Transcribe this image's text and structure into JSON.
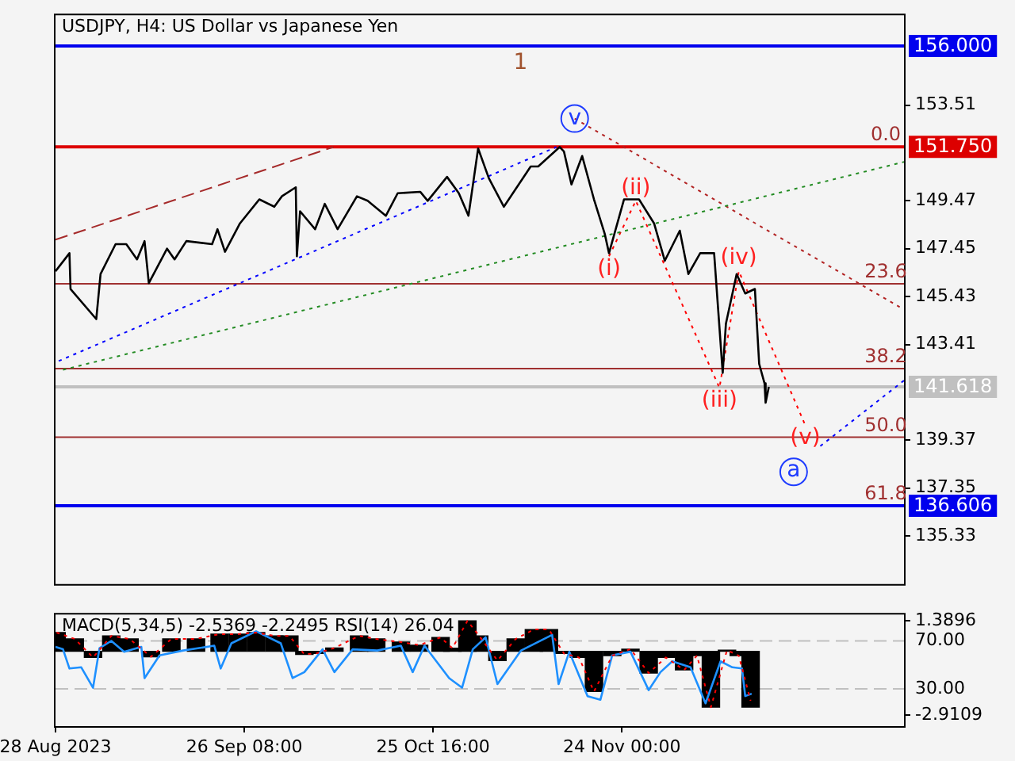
{
  "chart_data": [
    {
      "type": "line",
      "title": "USDJPY, H4: US Dollar vs Japanese Yen",
      "tick_labels": "y",
      "xlim": [
        "2023-08-28T00:00",
        "2024-01-06T20:00"
      ],
      "ylim": [
        133.3,
        157.3
      ],
      "yticks": [
        153.51,
        149.47,
        147.45,
        145.43,
        143.41,
        139.37,
        137.35,
        135.33
      ],
      "series": [
        {
          "color": "#000000",
          "x": [
            "2023-08-28T00:00",
            "2023-08-30T04:00",
            "2023-08-30T08:00",
            "2023-09-03T08:00",
            "2023-09-04T00:00",
            "2023-09-06T08:00",
            "2023-09-08T00:00",
            "2023-09-09T16:00",
            "2023-09-10T20:00",
            "2023-09-11T12:00",
            "2023-09-14T08:00",
            "2023-09-15T12:00",
            "2023-09-17T08:00",
            "2023-09-21T08:00",
            "2023-09-22T04:00",
            "2023-09-23T08:00",
            "2023-09-25T16:00",
            "2023-09-28T16:00",
            "2023-10-01T00:00",
            "2023-10-02T04:00",
            "2023-10-04T08:00",
            "2023-10-04T12:00",
            "2023-10-05T00:00",
            "2023-10-07T08:00",
            "2023-10-08T20:00",
            "2023-10-10T20:00",
            "2023-10-13T20:00",
            "2023-10-15T12:00",
            "2023-10-18T08:00",
            "2023-10-20T04:00",
            "2023-10-23T16:00",
            "2023-10-24T20:00",
            "2023-10-27T20:00",
            "2023-10-29T16:00",
            "2023-10-31T04:00",
            "2023-11-01T16:00",
            "2023-11-03T08:00",
            "2023-11-05T16:00",
            "2023-11-09T20:00",
            "2023-11-11T00:00",
            "2023-11-14T08:00",
            "2023-11-15T00:00",
            "2023-11-16T04:00",
            "2023-11-17T20:00",
            "2023-11-19T16:00",
            "2023-11-21T08:00",
            "2023-11-22T00:00",
            "2023-11-24T08:00",
            "2023-11-26T16:00",
            "2023-11-29T00:00",
            "2023-11-30T16:00",
            "2023-12-03T00:00",
            "2023-12-04T08:00",
            "2023-12-06T04:00",
            "2023-12-08T08:00",
            "2023-12-09T16:00",
            "2023-12-10T04:00",
            "2023-12-11T20:00",
            "2023-12-13T04:00",
            "2023-12-14T16:00",
            "2023-12-15T08:00",
            "2023-12-16T04:00",
            "2023-12-16T08:00",
            "2023-12-16T20:00"
          ],
          "values": [
            146.5,
            147.26,
            145.75,
            144.48,
            146.38,
            147.64,
            147.64,
            147.0,
            147.77,
            146.0,
            147.45,
            147.0,
            147.77,
            147.64,
            148.27,
            147.32,
            148.52,
            149.53,
            149.22,
            149.66,
            150.04,
            147.13,
            149.03,
            148.27,
            149.34,
            148.27,
            149.66,
            149.47,
            148.84,
            149.79,
            149.85,
            149.47,
            150.48,
            149.79,
            148.84,
            151.68,
            150.42,
            149.22,
            150.92,
            150.92,
            151.74,
            151.55,
            150.16,
            151.36,
            149.53,
            148.08,
            147.26,
            149.53,
            149.53,
            148.52,
            146.94,
            148.21,
            146.38,
            147.26,
            147.26,
            142.21,
            144.29,
            146.38,
            145.56,
            145.75,
            142.59,
            141.77,
            140.95,
            141.62
          ]
        },
        {
          "color": "#a52a2a",
          "line_style": "dashed",
          "x": [
            "2023-08-28T00:00",
            "2023-10-10T04:00"
          ],
          "values": [
            147.83,
            151.74
          ]
        },
        {
          "color": "#0000ff",
          "line_style": "dotted",
          "x": [
            "2023-08-28T12:00",
            "2023-11-13T20:00"
          ],
          "values": [
            142.71,
            151.74
          ]
        },
        {
          "color": "#228b22",
          "line_style": "dotted",
          "x": [
            "2023-08-29T04:00",
            "2024-01-06T20:00"
          ],
          "values": [
            142.34,
            151.11
          ]
        },
        {
          "color": "#b22222",
          "line_style": "dotted",
          "x": [
            "2023-11-16T16:00",
            "2024-01-06T04:00"
          ],
          "values": [
            152.94,
            144.99
          ]
        },
        {
          "color": "#ff0000",
          "line_style": "dotted",
          "x": [
            "2023-11-22T00:00",
            "2023-11-26T04:00",
            "2023-12-09T04:00",
            "2023-12-12T04:00",
            "2023-12-22T12:00"
          ],
          "values": [
            147.13,
            149.47,
            141.58,
            146.5,
            140.0
          ]
        },
        {
          "color": "#0000ff",
          "line_style": "dotted",
          "x": [
            "2023-12-24T20:00",
            "2024-01-06T20:00"
          ],
          "values": [
            139.12,
            141.89
          ]
        }
      ],
      "ref_lines": [
        {
          "axis": "y",
          "value": 156.0,
          "label": "156.000",
          "color": "#0000ee"
        },
        {
          "axis": "y",
          "value": 151.75,
          "label": "151.750",
          "color": "#dd0000"
        },
        {
          "axis": "y",
          "value": 145.97,
          "label": null,
          "color": "#a03030"
        },
        {
          "axis": "y",
          "value": 142.39,
          "label": null,
          "color": "#a03030"
        },
        {
          "axis": "y",
          "value": 141.618,
          "label": "141.618",
          "color": "#c0c0c0"
        },
        {
          "axis": "y",
          "value": 139.5,
          "label": null,
          "color": "#a03030"
        },
        {
          "axis": "y",
          "value": 136.606,
          "label": "136.606",
          "color": "#0000ee"
        }
      ],
      "annotations": [
        "1",
        {
          "text": "v",
          "x": "2023-11-16T16:00",
          "y": 152.94
        },
        {
          "text": "(i)",
          "x": "2023-11-22T00:00",
          "y": 147.13
        },
        {
          "text": "(ii)",
          "x": "2023-11-26T04:00",
          "y": 149.47
        },
        {
          "text": "(iii)",
          "x": "2023-12-09T04:00",
          "y": 141.58
        },
        {
          "text": "(iv)",
          "x": "2023-12-12T04:00",
          "y": 146.5
        },
        {
          "text": "(v)",
          "x": "2023-12-22T12:00",
          "y": 140.0
        },
        "a",
        {
          "text": "0.0",
          "x": "2024-01-04T00:00",
          "y": 151.75
        },
        {
          "text": "23.6",
          "x": "2024-01-04T00:00",
          "y": 145.97
        },
        {
          "text": "38.2",
          "x": "2024-01-04T00:00",
          "y": 142.39
        },
        {
          "text": "50.0",
          "x": "2024-01-04T00:00",
          "y": 139.5
        },
        {
          "text": "61.8",
          "x": "2024-01-04T00:00",
          "y": 136.606
        }
      ]
    },
    {
      "type": "bar",
      "title": "MACD(5,34,5) -2.5369 -2.2495 RSI(14) 26.04",
      "xlim": [
        "2023-08-28T00:00",
        "2024-01-06T20:00"
      ],
      "xticks": [
        {
          "value": "2023-08-28T00:00",
          "label": "28 Aug 2023"
        },
        {
          "value": "2023-09-26T08:00",
          "label": "26 Sep 08:00"
        },
        {
          "value": "2023-10-25T16:00",
          "label": "25 Oct 16:00"
        },
        {
          "value": "2023-11-24T00:00",
          "label": "24 Nov 00:00"
        }
      ],
      "ylim": [
        -3.4,
        1.67
      ],
      "yticks": [
        1.3896,
        -2.9109
      ],
      "y2lim": [
        -1,
        92
      ],
      "y2ticks": [
        {
          "value": 70,
          "label": "70.00"
        },
        {
          "value": 30,
          "label": "30.00"
        }
      ],
      "series": [
        {
          "type": "bar",
          "color": "#000000",
          "x": [
            "2023-08-28T04:00",
            "2023-08-31T00:00",
            "2023-09-02T20:00",
            "2023-09-05T16:00",
            "2023-09-08T12:00",
            "2023-09-11T20:00",
            "2023-09-15T00:00",
            "2023-09-18T20:00",
            "2023-09-22T12:00",
            "2023-09-25T08:00",
            "2023-09-28T04:00",
            "2023-10-01T00:00",
            "2023-10-03T08:00",
            "2023-10-05T16:00",
            "2023-10-07T12:00",
            "2023-10-10T08:00",
            "2023-10-14T04:00",
            "2023-10-16T20:00",
            "2023-10-20T16:00",
            "2023-10-23T12:00",
            "2023-10-26T20:00",
            "2023-10-28T16:00",
            "2023-10-31T00:00",
            "2023-11-01T20:00",
            "2023-11-04T16:00",
            "2023-11-07T12:00",
            "2023-11-10T08:00",
            "2023-11-12T16:00",
            "2023-11-15T00:00",
            "2023-11-17T08:00",
            "2023-11-19T16:00",
            "2023-11-22T12:00",
            "2023-11-25T08:00",
            "2023-11-28T04:00",
            "2023-11-30T20:00",
            "2023-12-03T16:00",
            "2023-12-05T16:00",
            "2023-12-07T20:00",
            "2023-12-10T08:00",
            "2023-12-12T04:00",
            "2023-12-14T00:00"
          ],
          "values": [
            0.85,
            0.56,
            -0.28,
            0.7,
            0.56,
            -0.25,
            0.56,
            0.56,
            0.78,
            0.78,
            0.85,
            0.7,
            0.7,
            -0.14,
            -0.1,
            0.15,
            0.7,
            0.56,
            0.42,
            0.28,
            0.63,
            0.14,
            1.38,
            0.7,
            -0.42,
            0.56,
            0.99,
            0.99,
            -0.1,
            -0.28,
            -1.83,
            -0.2,
            0.1,
            -0.99,
            -0.28,
            -0.85,
            -0.2,
            -2.54,
            0.05,
            -0.2,
            -2.54
          ]
        },
        {
          "type": "line",
          "color": "#ff0000",
          "line_style": "dotted",
          "x": [
            "2023-08-28T04:00",
            "2023-08-31T00:00",
            "2023-09-02T20:00",
            "2023-09-05T16:00",
            "2023-09-08T12:00",
            "2023-09-11T20:00",
            "2023-09-15T00:00",
            "2023-09-18T20:00",
            "2023-09-22T12:00",
            "2023-09-25T08:00",
            "2023-09-28T04:00",
            "2023-10-01T00:00",
            "2023-10-03T08:00",
            "2023-10-05T16:00",
            "2023-10-07T12:00",
            "2023-10-10T08:00",
            "2023-10-14T04:00",
            "2023-10-16T20:00",
            "2023-10-20T16:00",
            "2023-10-23T12:00",
            "2023-10-26T20:00",
            "2023-10-28T16:00",
            "2023-10-31T00:00",
            "2023-11-01T20:00",
            "2023-11-04T16:00",
            "2023-11-07T12:00",
            "2023-11-10T08:00",
            "2023-11-12T16:00",
            "2023-11-15T00:00",
            "2023-11-17T08:00",
            "2023-11-19T16:00",
            "2023-11-22T12:00",
            "2023-11-25T08:00",
            "2023-11-28T04:00",
            "2023-11-30T20:00",
            "2023-12-03T16:00",
            "2023-12-05T16:00",
            "2023-12-07T20:00",
            "2023-12-10T08:00",
            "2023-12-12T04:00",
            "2023-12-14T00:00"
          ],
          "values": [
            0.85,
            0.56,
            -0.28,
            0.7,
            0.56,
            -0.25,
            0.56,
            0.56,
            0.78,
            0.78,
            0.85,
            0.7,
            0.7,
            -0.14,
            -0.1,
            0.15,
            0.7,
            0.56,
            0.42,
            0.28,
            0.63,
            0.14,
            1.38,
            0.7,
            -0.42,
            0.56,
            0.99,
            0.99,
            -0.1,
            -0.28,
            -1.83,
            -0.2,
            0.1,
            -0.99,
            -0.28,
            -0.85,
            -0.2,
            -2.54,
            0.05,
            -0.2,
            -2.25
          ]
        },
        {
          "type": "line",
          "axis": "y2",
          "color": "#1e90ff",
          "x": [
            "2023-08-28T00:00",
            "2023-08-29T04:00",
            "2023-08-30T04:00",
            "2023-09-01T00:00",
            "2023-09-02T20:00",
            "2023-09-03T20:00",
            "2023-09-05T16:00",
            "2023-09-07T16:00",
            "2023-09-10T08:00",
            "2023-09-10T20:00",
            "2023-09-13T04:00",
            "2023-09-16T20:00",
            "2023-09-21T16:00",
            "2023-09-22T16:00",
            "2023-09-24T08:00",
            "2023-09-28T04:00",
            "2023-10-02T00:00",
            "2023-10-03T20:00",
            "2023-10-05T16:00",
            "2023-10-08T12:00",
            "2023-10-10T08:00",
            "2023-10-13T04:00",
            "2023-10-17T00:00",
            "2023-10-20T16:00",
            "2023-10-22T12:00",
            "2023-10-24T08:00",
            "2023-10-28T04:00",
            "2023-10-30T04:00",
            "2023-10-31T20:00",
            "2023-11-02T20:00",
            "2023-11-04T16:00",
            "2023-11-08T08:00",
            "2023-11-13T04:00",
            "2023-11-14T04:00",
            "2023-11-15T20:00",
            "2023-11-18T16:00",
            "2023-11-20T16:00",
            "2023-11-22T12:00",
            "2023-11-25T08:00",
            "2023-11-28T04:00",
            "2023-11-30T00:00",
            "2023-12-01T20:00",
            "2023-12-04T16:00",
            "2023-12-07T00:00",
            "2023-12-09T08:00",
            "2023-12-11T04:00",
            "2023-12-12T16:00",
            "2023-12-13T04:00",
            "2023-12-14T04:00"
          ],
          "values": [
            65,
            63,
            47,
            48,
            31,
            64,
            70,
            61,
            65,
            39,
            58,
            62,
            66,
            47,
            68,
            78,
            68,
            39,
            44,
            63,
            44,
            63,
            62,
            66,
            44,
            66,
            39,
            31,
            63,
            73,
            34,
            62,
            75,
            34,
            61,
            24,
            21,
            58,
            61,
            29,
            44,
            53,
            48,
            18,
            53,
            48,
            47,
            24,
            26
          ]
        }
      ],
      "ref_lines": [
        {
          "axis": "y2",
          "value": 70,
          "label": null,
          "color": "#c0c0c0",
          "line_style": "dashed"
        },
        {
          "axis": "y2",
          "value": 30,
          "label": null,
          "color": "#c0c0c0",
          "line_style": "dashed"
        }
      ]
    }
  ]
}
